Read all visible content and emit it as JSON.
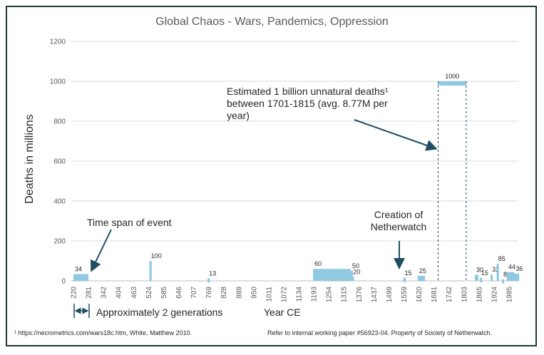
{
  "chart_data": {
    "type": "bar",
    "title": "Global Chaos - Wars, Pandemics, Oppression",
    "xlabel": "Year CE",
    "ylabel": "Deaths in millions",
    "ylim": [
      0,
      1200
    ],
    "y_ticks": [
      0,
      200,
      400,
      600,
      800,
      1000,
      1200
    ],
    "x_ticks": [
      "220",
      "281",
      "342",
      "404",
      "463",
      "524",
      "585",
      "646",
      "707",
      "769",
      "828",
      "889",
      "950",
      "1011",
      "1072",
      "1134",
      "1193",
      "1254",
      "1315",
      "1376",
      "1437",
      "1499",
      "1559",
      "1620",
      "1681",
      "1742",
      "1803",
      "1865",
      "1924",
      "1985"
    ],
    "grid": true,
    "events": [
      {
        "start": 220,
        "end": 281,
        "value": 34,
        "label": "34"
      },
      {
        "start": 529,
        "end": 531,
        "value": 100,
        "label": "100"
      },
      {
        "start": 765,
        "end": 770,
        "value": 13,
        "label": "13"
      },
      {
        "start": 1193,
        "end": 1346,
        "value": 60,
        "label": "60"
      },
      {
        "start": 1346,
        "end": 1350,
        "value": 50,
        "label": "50"
      },
      {
        "start": 1350,
        "end": 1360,
        "value": 20,
        "label": "20"
      },
      {
        "start": 1559,
        "end": 1570,
        "value": 15,
        "label": "15"
      },
      {
        "start": 1618,
        "end": 1648,
        "value": 25,
        "label": "25"
      },
      {
        "start": 1701,
        "end": 1815,
        "value": 1000,
        "label": "1000"
      },
      {
        "start": 1850,
        "end": 1864,
        "value": 30,
        "label": "30"
      },
      {
        "start": 1870,
        "end": 1880,
        "value": 15,
        "label": "15"
      },
      {
        "start": 1914,
        "end": 1918,
        "value": 32,
        "label": "32"
      },
      {
        "start": 1939,
        "end": 1945,
        "value": 85,
        "label": "85"
      },
      {
        "start": 1960,
        "end": 1962,
        "value": 8,
        "label": "8"
      },
      {
        "start": 1980,
        "end": 2010,
        "value": 44,
        "label": "44"
      },
      {
        "start": 2010,
        "end": 2030,
        "value": 36,
        "label": "36"
      }
    ],
    "annotations": {
      "time_span": "Time span of event",
      "creation": [
        "Creation of",
        "Netherwatch"
      ],
      "estimated": [
        "Estimated 1 billion unnatural deaths¹",
        "between 1701-1815 (avg. 8.77M per",
        "year)"
      ],
      "generations": "Approximately 2 generations"
    },
    "footnote_left": "¹ https://necrometrics.com/wars18c.htm, White, Matthew 2010.",
    "footnote_right": "Refer to internal working paper #56923-04. Property of Society of Netherwatch.",
    "colors": {
      "bar": "#8fc9e2",
      "axis": "#bfbfbf",
      "grid": "#d9d9d9",
      "arrow": "#1f4e63"
    }
  }
}
